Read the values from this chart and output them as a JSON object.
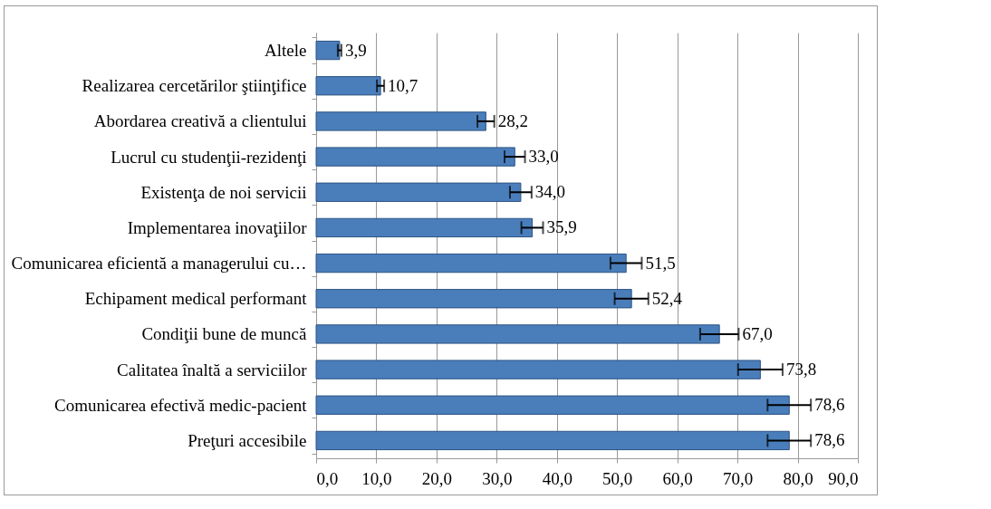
{
  "chart_data": {
    "type": "bar",
    "orientation": "horizontal",
    "categories": [
      "Altele",
      "Realizarea cercetărilor ştiinţifice",
      "Abordarea creativă a clientului",
      "Lucrul cu studenţii-rezidenţi",
      "Existenţa de noi servicii",
      "Implementarea inovaţiilor",
      "Comunicarea eficientă a managerului cu…",
      "Echipament medical performant",
      "Condiţii bune de muncă",
      "Calitatea înaltă a serviciilor",
      "Comunicarea efectivă medic-pacient",
      "Preţuri accesibile"
    ],
    "values": [
      3.9,
      10.7,
      28.2,
      33.0,
      34.0,
      35.9,
      51.5,
      52.4,
      67.0,
      73.8,
      78.6,
      78.6
    ],
    "errors": [
      0.3,
      0.6,
      1.4,
      1.7,
      1.8,
      1.8,
      2.6,
      2.8,
      3.2,
      3.7,
      3.6,
      3.6
    ],
    "value_labels": [
      "3,9",
      "10,7",
      "28,2",
      "33,0",
      "34,0",
      "35,9",
      "51,5",
      "52,4",
      "67,0",
      "73,8",
      "78,6",
      "78,6"
    ],
    "color": "#4a7ebb",
    "xlim": [
      0,
      90
    ],
    "xticks": [
      {
        "value": 0,
        "label": "0,0"
      },
      {
        "value": 10,
        "label": "10,0"
      },
      {
        "value": 20,
        "label": "20,0"
      },
      {
        "value": 30,
        "label": "30,0"
      },
      {
        "value": 40,
        "label": "40,0"
      },
      {
        "value": 50,
        "label": "50,0"
      },
      {
        "value": 60,
        "label": "60,0"
      },
      {
        "value": 70,
        "label": "70,0"
      },
      {
        "value": 80,
        "label": "80,0"
      },
      {
        "value": 90,
        "label": "90,0"
      }
    ],
    "grid": "x"
  }
}
